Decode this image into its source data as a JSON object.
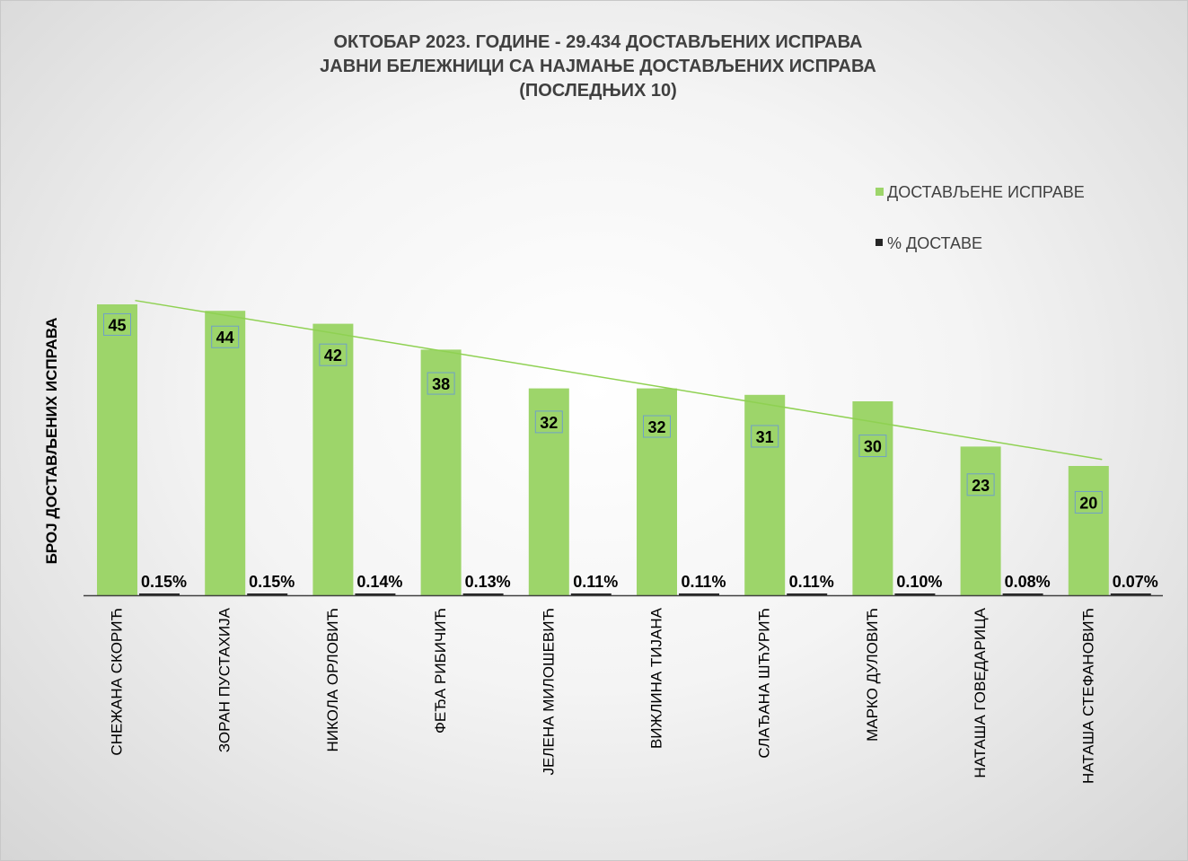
{
  "colors": {
    "bars": "#9dd56a",
    "pct_series": "#262626",
    "trendline": "#8fd152",
    "label_border": "#6fa0c8",
    "axis": "#404040"
  },
  "chart_data": {
    "type": "bar",
    "title": [
      "ОКТОБАР 2023. ГОДИНЕ - 29.434 ДОСТАВЉЕНИХ ИСПРАВА",
      "ЈАВНИ БЕЛЕЖНИЦИ СА НАЈМАЊЕ ДОСТАВЉЕНИХ ИСПРАВА",
      "(ПОСЛЕДЊИХ 10)"
    ],
    "ylabel": "БРОЈ ДОСТАВЉЕНИХ ИСПРАВА",
    "categories": [
      "СНЕЖАНА СКОРИЋ",
      "ЗОРАН ПУСТАХИЈА",
      "НИКОЛА ОРЛОВИЋ",
      "ФЕЂА РИБИЧИЋ",
      "ЈЕЛЕНА МИЛОШЕВИЋ",
      "ВИЖЛИНА ТИЈАНА",
      "СЛАЂАНА ШЋУРИЋ",
      "МАРКО ДУЛОВИЋ",
      "НАТАША ГОВЕДАРИЦА",
      "НАТАША СТЕФАНОВИЋ"
    ],
    "series": [
      {
        "name": "ДОСТАВЉЕНЕ ИСПРАВЕ",
        "values": [
          45,
          44,
          42,
          38,
          32,
          32,
          31,
          30,
          23,
          20
        ],
        "data_labels": [
          "45",
          "44",
          "42",
          "38",
          "32",
          "32",
          "31",
          "30",
          "23",
          "20"
        ]
      },
      {
        "name": "% ДОСТАВЕ",
        "values": [
          0.15,
          0.15,
          0.14,
          0.13,
          0.11,
          0.11,
          0.11,
          0.1,
          0.08,
          0.07
        ],
        "data_labels": [
          "0.15%",
          "0.15%",
          "0.14%",
          "0.13%",
          "0.11%",
          "0.11%",
          "0.11%",
          "0.10%",
          "0.08%",
          "0.07%"
        ]
      }
    ],
    "trendline": "linear",
    "ylim": [
      0,
      50
    ],
    "legend_position": "right",
    "grid": false
  }
}
